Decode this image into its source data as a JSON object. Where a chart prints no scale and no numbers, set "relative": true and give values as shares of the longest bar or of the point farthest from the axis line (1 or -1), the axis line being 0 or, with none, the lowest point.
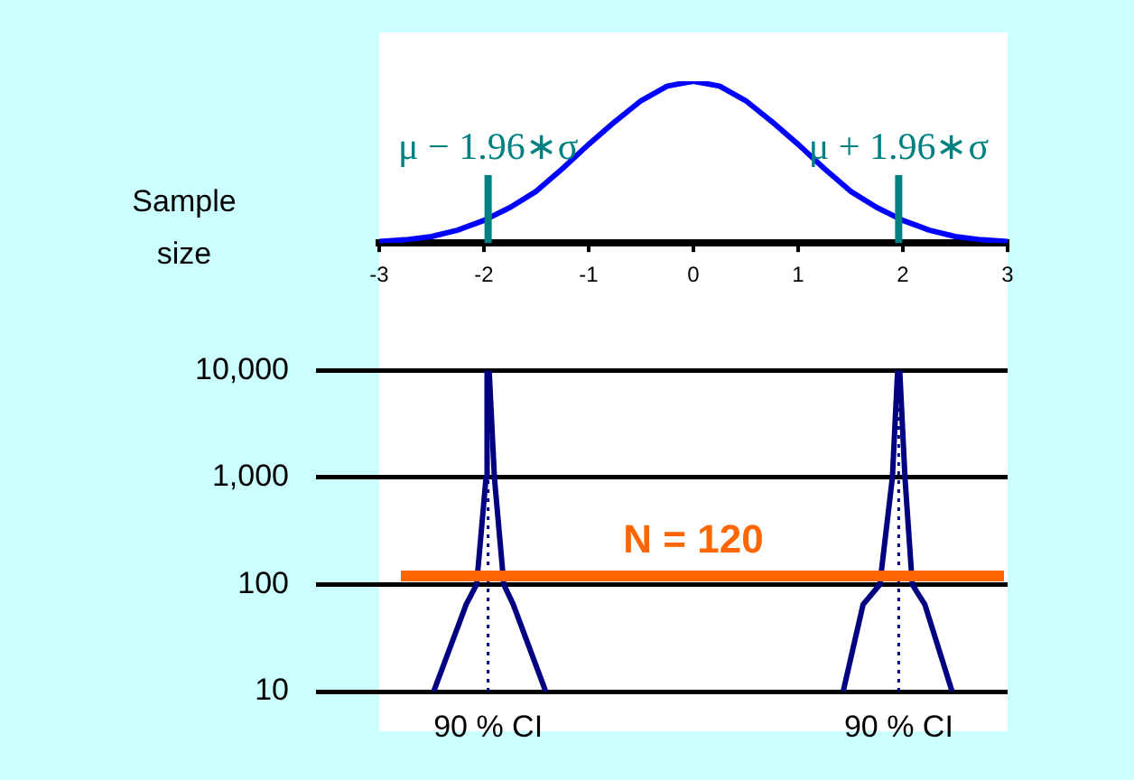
{
  "chart_data": [
    {
      "type": "line",
      "x": [
        -3,
        -2.75,
        -2.5,
        -2.25,
        -2,
        -1.75,
        -1.5,
        -1.25,
        -1,
        -0.75,
        -0.5,
        -0.25,
        0,
        0.25,
        0.5,
        0.75,
        1,
        1.25,
        1.5,
        1.75,
        2,
        2.25,
        2.5,
        2.75,
        3
      ],
      "values": [
        0.01,
        0.02,
        0.04,
        0.08,
        0.14,
        0.22,
        0.32,
        0.46,
        0.61,
        0.75,
        0.88,
        0.97,
        1,
        0.97,
        0.88,
        0.75,
        0.61,
        0.46,
        0.32,
        0.22,
        0.14,
        0.08,
        0.04,
        0.02,
        0.01
      ],
      "color": "#0000ff",
      "relative": true,
      "marker": "none",
      "xlim": [
        -3,
        3
      ],
      "xticks": [
        -3,
        -2,
        -1,
        0,
        1,
        2,
        3
      ],
      "ref_lines": [
        {
          "axis": "x",
          "value": -1.96,
          "label": "μ − 1.96∗σ",
          "color": "#008080"
        },
        {
          "axis": "x",
          "value": 1.96,
          "label": "μ + 1.96∗σ",
          "color": "#008080"
        }
      ]
    },
    {
      "type": "line",
      "ylabel": "Sample size",
      "log": "y",
      "xlim": [
        -3,
        3
      ],
      "ylim": [
        10,
        10000
      ],
      "yticks": [
        10,
        100,
        {
          "value": 1000,
          "label": "1,000"
        },
        {
          "value": 10000,
          "label": "10,000"
        }
      ],
      "tick_labels": "y",
      "grid": "y",
      "marker": "none",
      "series": [
        {
          "color": "#000080",
          "x": [
            -2.48,
            -2.17,
            -2.07,
            -1.98,
            -1.97
          ],
          "values": [
            10,
            65,
            100,
            1000,
            10000
          ]
        },
        {
          "color": "#000080",
          "x": [
            -1.41,
            -1.72,
            -1.81,
            -1.9,
            -1.95
          ],
          "values": [
            10,
            65,
            100,
            1000,
            10000
          ]
        },
        {
          "color": "#000080",
          "x": [
            1.43,
            1.62,
            1.78,
            1.9,
            1.95
          ],
          "values": [
            10,
            65,
            100,
            1000,
            10000
          ]
        },
        {
          "color": "#000080",
          "x": [
            2.47,
            2.21,
            2.09,
            2.02,
            1.97
          ],
          "values": [
            10,
            65,
            100,
            1000,
            10000
          ]
        }
      ],
      "ref_lines": [
        {
          "axis": "x",
          "value": -1.96,
          "color": "#000080",
          "line_style": "dotted"
        },
        {
          "axis": "x",
          "value": 1.96,
          "color": "#000080",
          "line_style": "dotted"
        },
        {
          "axis": "y",
          "value": 120,
          "label": "N = 120",
          "color": "#ff6600"
        }
      ],
      "annotations": [
        {
          "text": "90 % CI",
          "x": -1.96,
          "y": 10
        },
        {
          "text": "90 % CI",
          "x": 1.96,
          "y": 10
        }
      ]
    }
  ]
}
